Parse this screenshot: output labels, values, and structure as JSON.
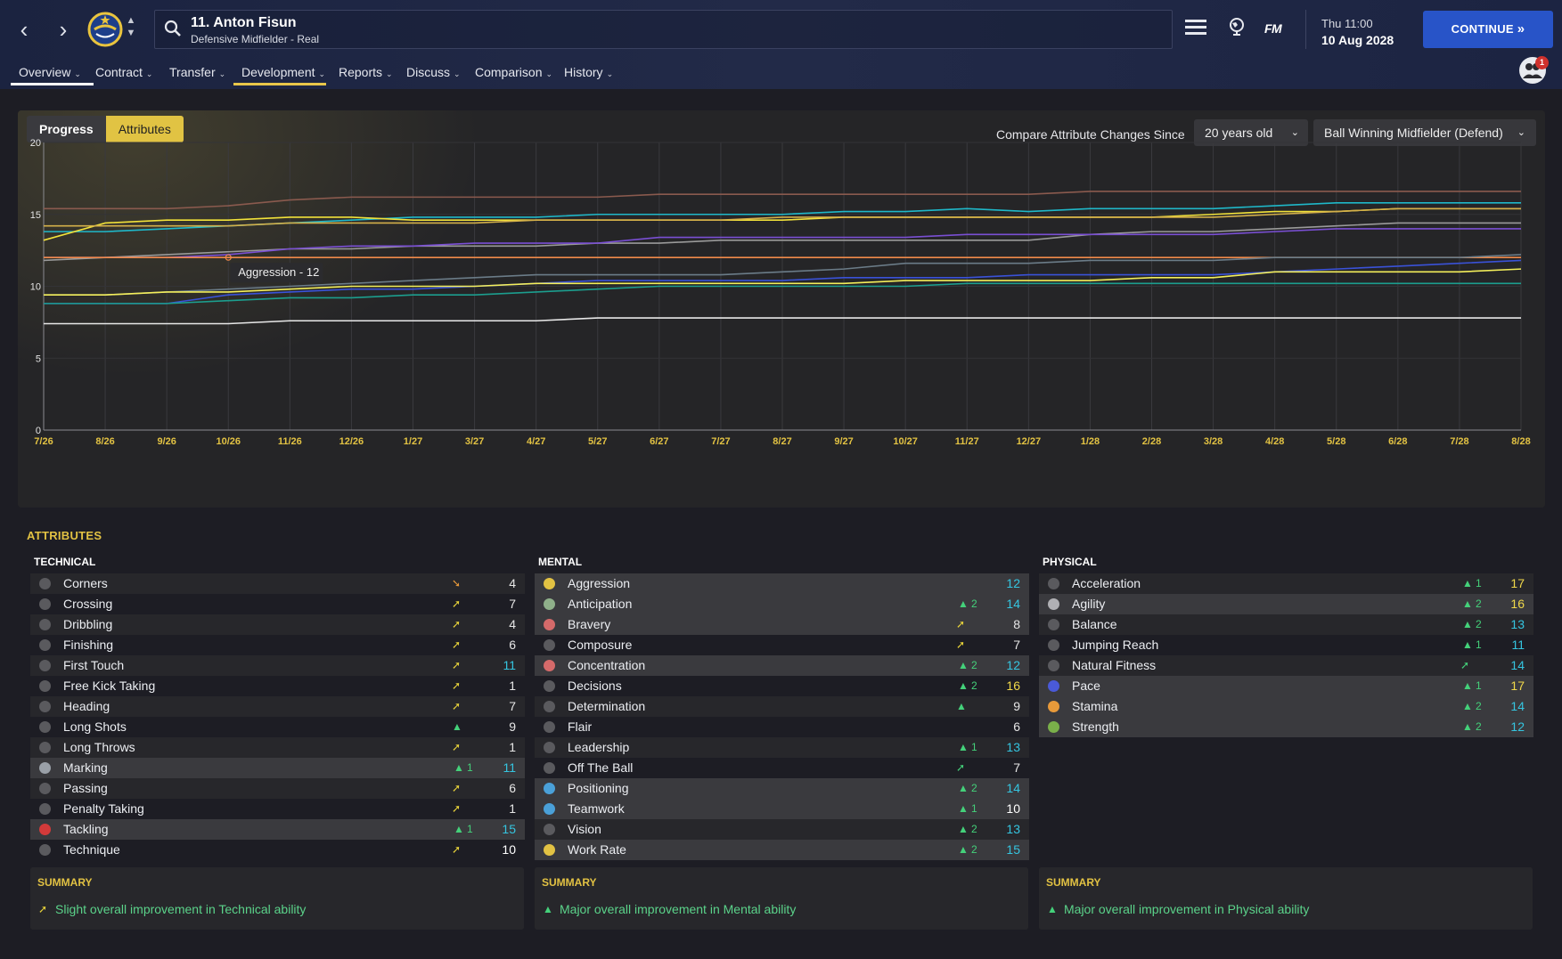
{
  "header": {
    "player_name": "11. Anton Fisun",
    "player_sub": "Defensive Midfielder - Real",
    "fm_label": "FM",
    "day_time": "Thu 11:00",
    "date": "10 Aug 2028",
    "continue_label": "CONTINUE",
    "notifications": "1"
  },
  "tabs": [
    {
      "label": "Overview"
    },
    {
      "label": "Contract"
    },
    {
      "label": "Transfer"
    },
    {
      "label": "Development"
    },
    {
      "label": "Reports"
    },
    {
      "label": "Discuss"
    },
    {
      "label": "Comparison"
    },
    {
      "label": "History"
    }
  ],
  "chart_controls": {
    "progress_label": "Progress",
    "attributes_label": "Attributes",
    "compare_label": "Compare Attribute Changes Since",
    "since_value": "20 years old",
    "role_value": "Ball Winning Midfielder (Defend)",
    "tooltip": "Aggression - 12"
  },
  "chart_data": {
    "type": "line",
    "x": [
      "7/26",
      "8/26",
      "9/26",
      "10/26",
      "11/26",
      "12/26",
      "1/27",
      "3/27",
      "4/27",
      "5/27",
      "6/27",
      "7/27",
      "8/27",
      "9/27",
      "10/27",
      "11/27",
      "12/27",
      "1/28",
      "2/28",
      "3/28",
      "4/28",
      "5/28",
      "6/28",
      "7/28",
      "8/28"
    ],
    "ylim": [
      0,
      20
    ],
    "yticks": [
      "0",
      "5",
      "10",
      "15",
      "20"
    ],
    "grid": true,
    "series": [
      {
        "color": "#8a5a4e",
        "values": [
          15.4,
          15.4,
          15.4,
          15.6,
          16.0,
          16.2,
          16.2,
          16.2,
          16.2,
          16.2,
          16.4,
          16.4,
          16.4,
          16.4,
          16.4,
          16.4,
          16.4,
          16.6,
          16.6,
          16.6,
          16.6,
          16.6,
          16.6,
          16.6,
          16.6
        ]
      },
      {
        "color": "#1fb8c9",
        "values": [
          13.8,
          13.8,
          14.0,
          14.2,
          14.4,
          14.6,
          14.8,
          14.8,
          14.8,
          15.0,
          15.0,
          15.0,
          15.0,
          15.2,
          15.2,
          15.4,
          15.2,
          15.4,
          15.4,
          15.4,
          15.6,
          15.8,
          15.8,
          15.8,
          15.8
        ]
      },
      {
        "color": "#f2e23a",
        "values": [
          13.2,
          14.4,
          14.6,
          14.6,
          14.8,
          14.8,
          14.6,
          14.6,
          14.6,
          14.6,
          14.6,
          14.6,
          14.6,
          14.8,
          14.8,
          14.8,
          14.8,
          14.8,
          14.8,
          15.0,
          15.2,
          15.2,
          15.4,
          15.4,
          15.4
        ]
      },
      {
        "color": "#d4b04a",
        "values": [
          14.2,
          14.2,
          14.2,
          14.2,
          14.4,
          14.4,
          14.4,
          14.4,
          14.6,
          14.6,
          14.6,
          14.6,
          14.8,
          14.8,
          14.8,
          14.8,
          14.8,
          14.8,
          14.8,
          14.8,
          15.0,
          15.2,
          15.4,
          15.4,
          15.4
        ]
      },
      {
        "color": "#9a9a9a",
        "values": [
          11.8,
          12.0,
          12.2,
          12.4,
          12.6,
          12.6,
          12.8,
          12.8,
          12.8,
          13.0,
          13.0,
          13.2,
          13.2,
          13.2,
          13.2,
          13.2,
          13.2,
          13.6,
          13.8,
          13.8,
          14.0,
          14.2,
          14.4,
          14.4,
          14.4
        ]
      },
      {
        "color": "#7a4fd4",
        "values": [
          12.0,
          12.0,
          12.0,
          12.2,
          12.6,
          12.8,
          12.8,
          13.0,
          13.0,
          13.0,
          13.4,
          13.4,
          13.4,
          13.4,
          13.4,
          13.6,
          13.6,
          13.6,
          13.6,
          13.6,
          13.8,
          14.0,
          14.0,
          14.0,
          14.0
        ]
      },
      {
        "color": "#f08a4a",
        "values": [
          12.0,
          12.0,
          12.0,
          12.0,
          12.0,
          12.0,
          12.0,
          12.0,
          12.0,
          12.0,
          12.0,
          12.0,
          12.0,
          12.0,
          12.0,
          12.0,
          12.0,
          12.0,
          12.0,
          12.0,
          12.0,
          12.0,
          12.0,
          12.0,
          12.0
        ]
      },
      {
        "color": "#6b7c88",
        "values": [
          9.4,
          9.4,
          9.6,
          9.8,
          10.0,
          10.2,
          10.4,
          10.6,
          10.8,
          10.8,
          10.8,
          10.8,
          11.0,
          11.2,
          11.6,
          11.6,
          11.6,
          11.8,
          11.8,
          11.8,
          12.0,
          12.0,
          12.0,
          12.0,
          12.2
        ]
      },
      {
        "color": "#3a52d8",
        "values": [
          8.8,
          8.8,
          8.8,
          9.4,
          9.6,
          9.8,
          9.8,
          10.0,
          10.2,
          10.4,
          10.4,
          10.4,
          10.4,
          10.6,
          10.6,
          10.6,
          10.8,
          10.8,
          10.8,
          10.8,
          11.0,
          11.2,
          11.4,
          11.6,
          11.8
        ]
      },
      {
        "color": "#f4ef5a",
        "values": [
          9.4,
          9.4,
          9.6,
          9.6,
          9.8,
          10.0,
          10.0,
          10.0,
          10.2,
          10.2,
          10.2,
          10.2,
          10.2,
          10.2,
          10.4,
          10.4,
          10.4,
          10.4,
          10.6,
          10.6,
          11.0,
          11.0,
          11.0,
          11.0,
          11.2
        ]
      },
      {
        "color": "#1c9e8e",
        "values": [
          8.8,
          8.8,
          8.8,
          9.0,
          9.2,
          9.2,
          9.4,
          9.4,
          9.6,
          9.8,
          10.0,
          10.0,
          10.0,
          10.0,
          10.0,
          10.2,
          10.2,
          10.2,
          10.2,
          10.2,
          10.2,
          10.2,
          10.2,
          10.2,
          10.2
        ]
      },
      {
        "color": "#e8e8e8",
        "values": [
          7.4,
          7.4,
          7.4,
          7.4,
          7.6,
          7.6,
          7.6,
          7.6,
          7.6,
          7.8,
          7.8,
          7.8,
          7.8,
          7.8,
          7.8,
          7.8,
          7.8,
          7.8,
          7.8,
          7.8,
          7.8,
          7.8,
          7.8,
          7.8,
          7.8
        ]
      }
    ]
  },
  "attributes": {
    "title": "ATTRIBUTES",
    "summary_title": "SUMMARY",
    "technical": {
      "title": "TECHNICAL",
      "summary": "Slight overall improvement in Technical ability",
      "summary_arrow": "slight",
      "items": [
        {
          "name": "Corners",
          "value": "4",
          "delta": "",
          "arrow": "down",
          "icon_color": "#5a5a5e",
          "hl": false,
          "valcolor": "#e6e6e6"
        },
        {
          "name": "Crossing",
          "value": "7",
          "delta": "",
          "arrow": "slight",
          "icon_color": "#5a5a5e",
          "hl": false,
          "valcolor": "#e6e6e6"
        },
        {
          "name": "Dribbling",
          "value": "4",
          "delta": "",
          "arrow": "slight",
          "icon_color": "#5a5a5e",
          "hl": false,
          "valcolor": "#e6e6e6"
        },
        {
          "name": "Finishing",
          "value": "6",
          "delta": "",
          "arrow": "slight",
          "icon_color": "#5a5a5e",
          "hl": false,
          "valcolor": "#e6e6e6"
        },
        {
          "name": "First Touch",
          "value": "11",
          "delta": "",
          "arrow": "slight",
          "icon_color": "#5a5a5e",
          "hl": false,
          "valcolor": "#35c5e0"
        },
        {
          "name": "Free Kick Taking",
          "value": "1",
          "delta": "",
          "arrow": "slight",
          "icon_color": "#5a5a5e",
          "hl": false,
          "valcolor": "#e6e6e6"
        },
        {
          "name": "Heading",
          "value": "7",
          "delta": "",
          "arrow": "slight",
          "icon_color": "#5a5a5e",
          "hl": false,
          "valcolor": "#e6e6e6"
        },
        {
          "name": "Long Shots",
          "value": "9",
          "delta": "",
          "arrow": "up",
          "icon_color": "#5a5a5e",
          "hl": false,
          "valcolor": "#e6e6e6"
        },
        {
          "name": "Long Throws",
          "value": "1",
          "delta": "",
          "arrow": "slight",
          "icon_color": "#5a5a5e",
          "hl": false,
          "valcolor": "#e6e6e6"
        },
        {
          "name": "Marking",
          "value": "11",
          "delta": "1",
          "arrow": "up",
          "icon_color": "#9aa0a8",
          "hl": true,
          "valcolor": "#35c5e0"
        },
        {
          "name": "Passing",
          "value": "6",
          "delta": "",
          "arrow": "slight",
          "icon_color": "#5a5a5e",
          "hl": false,
          "valcolor": "#e6e6e6"
        },
        {
          "name": "Penalty Taking",
          "value": "1",
          "delta": "",
          "arrow": "slight",
          "icon_color": "#5a5a5e",
          "hl": false,
          "valcolor": "#e6e6e6"
        },
        {
          "name": "Tackling",
          "value": "15",
          "delta": "1",
          "arrow": "up",
          "icon_color": "#d33a3a",
          "hl": true,
          "valcolor": "#35c5e0"
        },
        {
          "name": "Technique",
          "value": "10",
          "delta": "",
          "arrow": "slight",
          "icon_color": "#5a5a5e",
          "hl": false,
          "valcolor": "#ffffff"
        }
      ]
    },
    "mental": {
      "title": "MENTAL",
      "summary": "Major overall improvement in Mental ability",
      "summary_arrow": "up",
      "items": [
        {
          "name": "Aggression",
          "value": "12",
          "delta": "",
          "arrow": "",
          "icon_color": "#e2c243",
          "hl": true,
          "valcolor": "#35c5e0"
        },
        {
          "name": "Anticipation",
          "value": "14",
          "delta": "2",
          "arrow": "up",
          "icon_color": "#8fb08a",
          "hl": true,
          "valcolor": "#35c5e0"
        },
        {
          "name": "Bravery",
          "value": "8",
          "delta": "",
          "arrow": "slight",
          "icon_color": "#d56a6a",
          "hl": true,
          "valcolor": "#e6e6e6"
        },
        {
          "name": "Composure",
          "value": "7",
          "delta": "",
          "arrow": "slight",
          "icon_color": "#5a5a5e",
          "hl": false,
          "valcolor": "#e6e6e6"
        },
        {
          "name": "Concentration",
          "value": "12",
          "delta": "2",
          "arrow": "up",
          "icon_color": "#d56a6a",
          "hl": true,
          "valcolor": "#35c5e0"
        },
        {
          "name": "Decisions",
          "value": "16",
          "delta": "2",
          "arrow": "up",
          "icon_color": "#5a5a5e",
          "hl": false,
          "valcolor": "#f0d84a"
        },
        {
          "name": "Determination",
          "value": "9",
          "delta": "",
          "arrow": "up",
          "icon_color": "#5a5a5e",
          "hl": false,
          "valcolor": "#e6e6e6"
        },
        {
          "name": "Flair",
          "value": "6",
          "delta": "",
          "arrow": "",
          "icon_color": "#5a5a5e",
          "hl": false,
          "valcolor": "#e6e6e6"
        },
        {
          "name": "Leadership",
          "value": "13",
          "delta": "1",
          "arrow": "up",
          "icon_color": "#5a5a5e",
          "hl": false,
          "valcolor": "#35c5e0"
        },
        {
          "name": "Off The Ball",
          "value": "7",
          "delta": "",
          "arrow": "slightup",
          "icon_color": "#5a5a5e",
          "hl": false,
          "valcolor": "#e6e6e6"
        },
        {
          "name": "Positioning",
          "value": "14",
          "delta": "2",
          "arrow": "up",
          "icon_color": "#4aa0d8",
          "hl": true,
          "valcolor": "#35c5e0"
        },
        {
          "name": "Teamwork",
          "value": "10",
          "delta": "1",
          "arrow": "up",
          "icon_color": "#4aa0d8",
          "hl": true,
          "valcolor": "#ffffff"
        },
        {
          "name": "Vision",
          "value": "13",
          "delta": "2",
          "arrow": "up",
          "icon_color": "#5a5a5e",
          "hl": false,
          "valcolor": "#35c5e0"
        },
        {
          "name": "Work Rate",
          "value": "15",
          "delta": "2",
          "arrow": "up",
          "icon_color": "#e2c243",
          "hl": true,
          "valcolor": "#35c5e0"
        }
      ]
    },
    "physical": {
      "title": "PHYSICAL",
      "summary": "Major overall improvement in Physical ability",
      "summary_arrow": "up",
      "items": [
        {
          "name": "Acceleration",
          "value": "17",
          "delta": "1",
          "arrow": "up",
          "icon_color": "#5a5a5e",
          "hl": false,
          "valcolor": "#f0d84a"
        },
        {
          "name": "Agility",
          "value": "16",
          "delta": "2",
          "arrow": "up",
          "icon_color": "#b0b0b4",
          "hl": true,
          "valcolor": "#f0d84a"
        },
        {
          "name": "Balance",
          "value": "13",
          "delta": "2",
          "arrow": "up",
          "icon_color": "#5a5a5e",
          "hl": false,
          "valcolor": "#35c5e0"
        },
        {
          "name": "Jumping Reach",
          "value": "11",
          "delta": "1",
          "arrow": "up",
          "icon_color": "#5a5a5e",
          "hl": false,
          "valcolor": "#35c5e0"
        },
        {
          "name": "Natural Fitness",
          "value": "14",
          "delta": "",
          "arrow": "slightup",
          "icon_color": "#5a5a5e",
          "hl": false,
          "valcolor": "#35c5e0"
        },
        {
          "name": "Pace",
          "value": "17",
          "delta": "1",
          "arrow": "up",
          "icon_color": "#4a5ad8",
          "hl": true,
          "valcolor": "#f0d84a"
        },
        {
          "name": "Stamina",
          "value": "14",
          "delta": "2",
          "arrow": "up",
          "icon_color": "#e89a3a",
          "hl": true,
          "valcolor": "#35c5e0"
        },
        {
          "name": "Strength",
          "value": "12",
          "delta": "2",
          "arrow": "up",
          "icon_color": "#7ab04a",
          "hl": true,
          "valcolor": "#35c5e0"
        }
      ]
    }
  }
}
